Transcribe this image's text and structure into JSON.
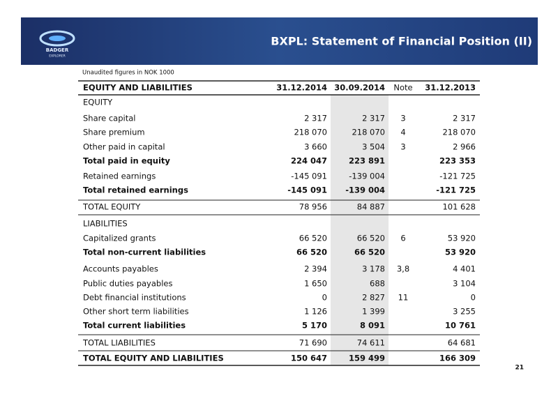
{
  "header": {
    "title": "BXPL: Statement of Financial Position (II)",
    "logo_name": "BADGER",
    "logo_sub": "EXPLORER"
  },
  "subtitle": "Unaudited figures in NOK 1000",
  "table": {
    "columns": [
      "EQUITY AND LIABILITIES",
      "31.12.2014",
      "30.09.2014",
      "Note",
      "31.12.2013"
    ],
    "rows": [
      [
        "EQUITY",
        null,
        null,
        null,
        null
      ],
      [
        "Share capital",
        "2 317",
        "2 317",
        "3",
        "2 317"
      ],
      [
        "Share premium",
        "218 070",
        "218 070",
        "4",
        "218 070"
      ],
      [
        "Other paid in capital",
        "3 660",
        "3 504",
        "3",
        "2 966"
      ],
      [
        "Total paid in equity",
        "224 047",
        "223 891",
        null,
        "223 353"
      ],
      [
        "Retained earnings",
        "-145 091",
        "-139 004",
        null,
        "-121 725"
      ],
      [
        "Total retained earnings",
        "-145 091",
        "-139 004",
        null,
        "-121 725"
      ],
      [
        "TOTAL EQUITY",
        "78 956",
        "84 887",
        null,
        "101 628"
      ],
      [
        "LIABILITIES",
        null,
        null,
        null,
        null
      ],
      [
        "Capitalized grants",
        "66 520",
        "66 520",
        "6",
        "53 920"
      ],
      [
        "Total non-current liabilities",
        "66 520",
        "66 520",
        null,
        "53 920"
      ],
      [
        "Accounts payables",
        "2 394",
        "3 178",
        "3,8",
        "4 401"
      ],
      [
        "Public duties payables",
        "1 650",
        "688",
        null,
        "3 104"
      ],
      [
        "Debt financial institutions",
        "0",
        "2 827",
        "11",
        "0"
      ],
      [
        "Other short term liabilities",
        "1 126",
        "1 399",
        null,
        "3 255"
      ],
      [
        "Total current liabilities",
        "5 170",
        "8 091",
        null,
        "10 761"
      ],
      [
        "TOTAL LIABILITIES",
        "71 690",
        "74 611",
        null,
        "64 681"
      ],
      [
        "TOTAL EQUITY AND LIABILITIES",
        "150 647",
        "159 499",
        null,
        "166 309"
      ]
    ]
  },
  "page_number": "21"
}
